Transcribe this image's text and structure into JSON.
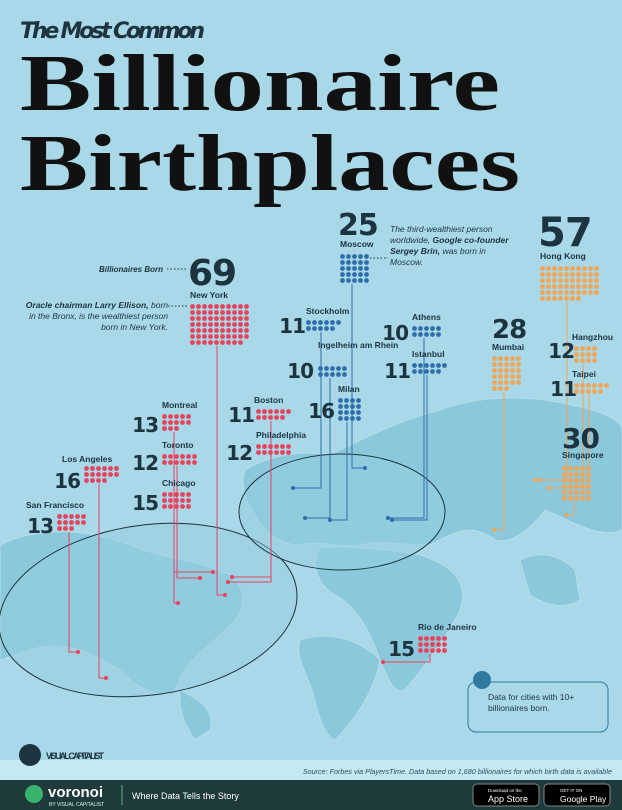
{
  "header": {
    "kicker": "The Most Common",
    "title_line1": "Billionaire",
    "title_line2": "Birthplaces"
  },
  "legend": {
    "label": "Billionaires Born"
  },
  "cities": [
    {
      "name": "New York",
      "count": 69,
      "color": "#e8425d"
    },
    {
      "name": "Moscow",
      "count": 25,
      "color": "#2f6eaa"
    },
    {
      "name": "Hong Kong",
      "count": 57,
      "color": "#f2a555"
    },
    {
      "name": "Stockholm",
      "count": 11,
      "color": "#2f6eaa"
    },
    {
      "name": "Ingelheim am Rhein",
      "count": 10,
      "color": "#2f6eaa"
    },
    {
      "name": "Milan",
      "count": 16,
      "color": "#2f6eaa"
    },
    {
      "name": "Athens",
      "count": 10,
      "color": "#2f6eaa"
    },
    {
      "name": "Istanbul",
      "count": 11,
      "color": "#2f6eaa"
    },
    {
      "name": "Mumbai",
      "count": 28,
      "color": "#f2a555"
    },
    {
      "name": "Hangzhou",
      "count": 12,
      "color": "#f2a555"
    },
    {
      "name": "Taipei",
      "count": 11,
      "color": "#f2a555"
    },
    {
      "name": "Singapore",
      "count": 30,
      "color": "#f2a555"
    },
    {
      "name": "Boston",
      "count": 11,
      "color": "#e8425d"
    },
    {
      "name": "Philadelphia",
      "count": 12,
      "color": "#e8425d"
    },
    {
      "name": "Montreal",
      "count": 13,
      "color": "#e8425d"
    },
    {
      "name": "Toronto",
      "count": 12,
      "color": "#e8425d"
    },
    {
      "name": "Chicago",
      "count": 15,
      "color": "#e8425d"
    },
    {
      "name": "Los Angeles",
      "count": 16,
      "color": "#e8425d"
    },
    {
      "name": "San Francisco",
      "count": 13,
      "color": "#e8425d"
    },
    {
      "name": "Rio de Janeiro",
      "count": 15,
      "color": "#e8425d"
    }
  ],
  "annotations": {
    "new_york": [
      {
        "text": "Oracle chairman Larry Ellison,",
        "bold": true
      },
      {
        "text": " born in the Bronx, is the wealthiest person born in New York.",
        "bold": false
      }
    ],
    "moscow": [
      {
        "text": "The third-wealthiest person worldwide, ",
        "bold": false
      },
      {
        "text": "Google co-founder Sergey Brin,",
        "bold": true
      },
      {
        "text": " was born in Moscow.",
        "bold": false
      }
    ]
  },
  "info": "Data for cities with 10+ billionaires born.",
  "footer": {
    "logo": "VISUAL CAPITALIST",
    "source": "Source: Forbes via PlayersTime. Data based on 1,680 billionaires for which birth data is available",
    "brand": "voronoi",
    "brand_sub": "BY VISUAL CAPITALIST",
    "tagline": "Where Data Tells the Story",
    "app_store_small": "Download on the",
    "app_store": "App Store",
    "google_small": "GET IT ON",
    "google": "Google Play"
  }
}
